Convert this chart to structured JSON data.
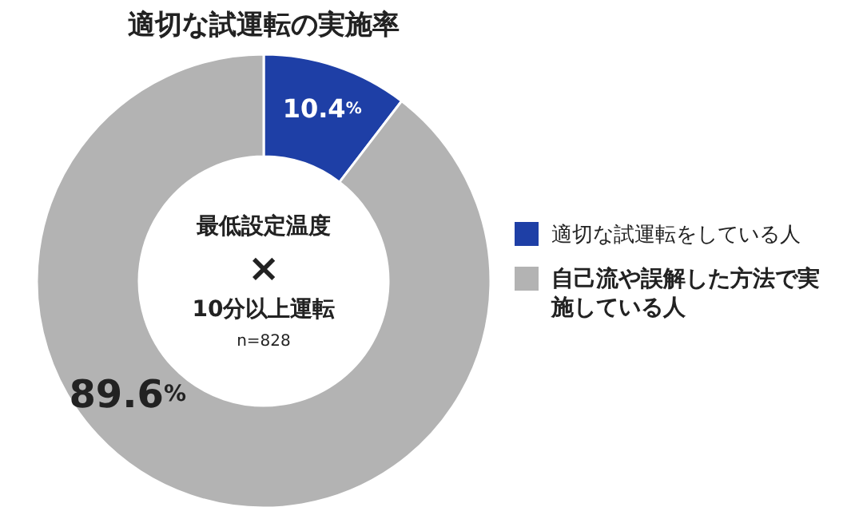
{
  "chart_data": {
    "type": "donut",
    "title": "適切な試運転の実施率",
    "categories": [
      "適切な試運転をしている人",
      "自己流や誤解した方法で実施している人"
    ],
    "values": [
      10.4,
      89.6
    ],
    "colors": [
      "#1e3fa6",
      "#b3b3b3"
    ],
    "value_labels": [
      "10.4%",
      "89.6%"
    ],
    "legend": "right",
    "annotations": [
      "最低設定温度",
      "×",
      "10分以上運転",
      "n=828"
    ]
  }
}
